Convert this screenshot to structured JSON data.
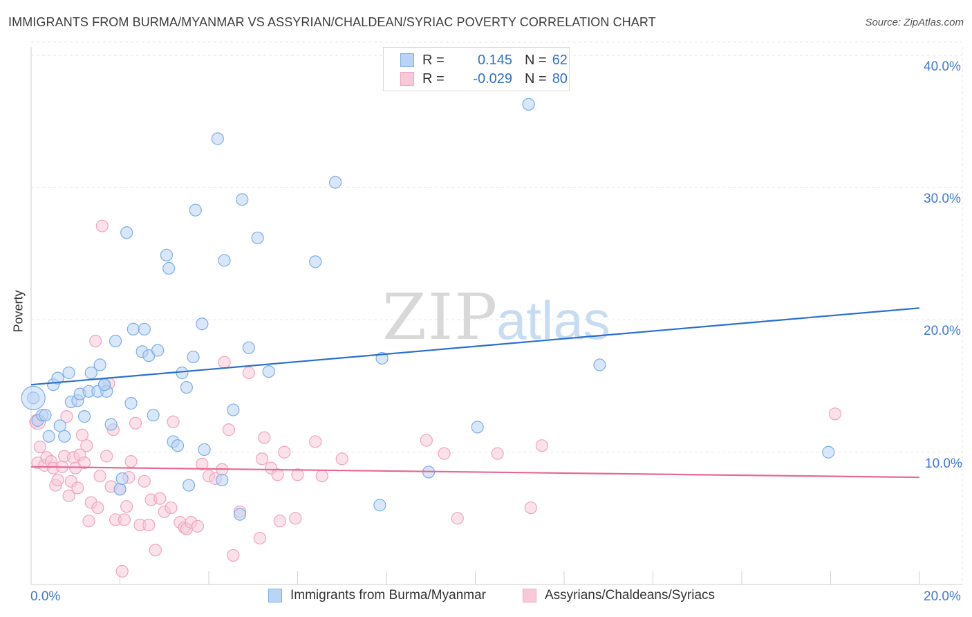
{
  "chart_data": {
    "type": "scatter",
    "title": "IMMIGRANTS FROM BURMA/MYANMAR VS ASSYRIAN/CHALDEAN/SYRIAC POVERTY CORRELATION CHART",
    "source": "Source: ZipAtlas.com",
    "xlabel": "",
    "ylabel": "Poverty",
    "xlim": [
      0,
      20
    ],
    "ylim": [
      0,
      40
    ],
    "x_tick_labels": [
      "0.0%",
      "20.0%"
    ],
    "y_tick_labels": [
      "10.0%",
      "20.0%",
      "30.0%",
      "40.0%"
    ],
    "watermark": {
      "zip": "ZIP",
      "atlas": "atlas"
    },
    "series": [
      {
        "name": "Immigrants from Burma/Myanmar",
        "color": "#7baee8",
        "fill": "#b9d4f5",
        "line_color": "#2a6fcf",
        "R": "0.145",
        "N": "62",
        "trend": [
          [
            0,
            15.1
          ],
          [
            20,
            20.9
          ]
        ],
        "points": [
          [
            0.05,
            14.1
          ],
          [
            0.15,
            12.4
          ],
          [
            0.25,
            12.8
          ],
          [
            0.32,
            12.8
          ],
          [
            0.4,
            11.2
          ],
          [
            0.5,
            15.1
          ],
          [
            0.6,
            15.6
          ],
          [
            0.65,
            12.0
          ],
          [
            0.75,
            11.2
          ],
          [
            0.85,
            16.0
          ],
          [
            0.9,
            13.8
          ],
          [
            1.05,
            13.9
          ],
          [
            1.1,
            14.4
          ],
          [
            1.2,
            12.7
          ],
          [
            1.3,
            14.6
          ],
          [
            1.35,
            16.0
          ],
          [
            1.5,
            14.6
          ],
          [
            1.55,
            16.6
          ],
          [
            1.65,
            15.1
          ],
          [
            1.7,
            14.6
          ],
          [
            1.8,
            12.1
          ],
          [
            1.9,
            18.4
          ],
          [
            2.0,
            7.2
          ],
          [
            2.05,
            8.0
          ],
          [
            2.15,
            26.6
          ],
          [
            2.25,
            13.7
          ],
          [
            2.3,
            19.3
          ],
          [
            2.5,
            17.6
          ],
          [
            2.55,
            19.3
          ],
          [
            2.65,
            17.3
          ],
          [
            2.75,
            12.8
          ],
          [
            2.85,
            17.7
          ],
          [
            3.05,
            24.9
          ],
          [
            3.1,
            23.9
          ],
          [
            3.2,
            10.8
          ],
          [
            3.3,
            10.5
          ],
          [
            3.4,
            16.0
          ],
          [
            3.5,
            14.9
          ],
          [
            3.55,
            7.5
          ],
          [
            3.65,
            17.2
          ],
          [
            3.7,
            28.3
          ],
          [
            3.85,
            19.7
          ],
          [
            3.9,
            10.2
          ],
          [
            4.2,
            33.7
          ],
          [
            4.3,
            7.9
          ],
          [
            4.35,
            24.5
          ],
          [
            4.55,
            13.2
          ],
          [
            4.7,
            5.3
          ],
          [
            4.75,
            29.1
          ],
          [
            4.9,
            17.9
          ],
          [
            5.1,
            26.2
          ],
          [
            5.35,
            16.1
          ],
          [
            6.4,
            24.4
          ],
          [
            6.85,
            30.4
          ],
          [
            7.85,
            6.0
          ],
          [
            7.9,
            17.1
          ],
          [
            8.95,
            8.5
          ],
          [
            10.05,
            11.9
          ],
          [
            11.2,
            36.3
          ],
          [
            12.8,
            16.6
          ],
          [
            17.95,
            10.0
          ],
          [
            1.65,
            15.1
          ]
        ]
      },
      {
        "name": "Assyrians/Chaldeans/Syriacs",
        "color": "#f0a3bd",
        "fill": "#f8cad8",
        "line_color": "#e8678f",
        "R": "-0.029",
        "N": "80",
        "trend": [
          [
            0,
            8.9
          ],
          [
            20,
            8.1
          ]
        ],
        "points": [
          [
            0.1,
            12.3
          ],
          [
            0.15,
            9.2
          ],
          [
            0.2,
            10.4
          ],
          [
            0.3,
            9.0
          ],
          [
            0.35,
            9.6
          ],
          [
            0.45,
            9.3
          ],
          [
            0.5,
            8.8
          ],
          [
            0.55,
            7.5
          ],
          [
            0.6,
            7.9
          ],
          [
            0.7,
            8.9
          ],
          [
            0.75,
            9.7
          ],
          [
            0.8,
            12.7
          ],
          [
            0.85,
            6.7
          ],
          [
            0.9,
            7.8
          ],
          [
            0.95,
            9.6
          ],
          [
            1.0,
            8.8
          ],
          [
            1.05,
            7.3
          ],
          [
            1.1,
            9.8
          ],
          [
            1.15,
            11.3
          ],
          [
            1.2,
            9.2
          ],
          [
            1.25,
            10.5
          ],
          [
            1.3,
            4.8
          ],
          [
            1.35,
            6.2
          ],
          [
            1.45,
            18.4
          ],
          [
            1.5,
            5.8
          ],
          [
            1.55,
            8.2
          ],
          [
            1.6,
            27.1
          ],
          [
            1.7,
            9.7
          ],
          [
            1.75,
            15.2
          ],
          [
            1.8,
            7.4
          ],
          [
            1.85,
            11.7
          ],
          [
            1.9,
            4.9
          ],
          [
            2.0,
            7.2
          ],
          [
            2.05,
            1.0
          ],
          [
            2.1,
            4.9
          ],
          [
            2.15,
            5.9
          ],
          [
            2.2,
            8.1
          ],
          [
            2.25,
            9.3
          ],
          [
            2.35,
            12.2
          ],
          [
            2.45,
            4.5
          ],
          [
            2.55,
            7.8
          ],
          [
            2.65,
            4.5
          ],
          [
            2.7,
            6.4
          ],
          [
            2.8,
            2.6
          ],
          [
            2.9,
            6.5
          ],
          [
            3.0,
            5.5
          ],
          [
            3.15,
            5.8
          ],
          [
            3.2,
            12.3
          ],
          [
            3.35,
            4.7
          ],
          [
            3.45,
            4.3
          ],
          [
            3.5,
            4.2
          ],
          [
            3.6,
            4.7
          ],
          [
            3.75,
            4.4
          ],
          [
            3.85,
            9.1
          ],
          [
            4.0,
            8.2
          ],
          [
            4.15,
            8.0
          ],
          [
            4.3,
            8.7
          ],
          [
            4.35,
            16.8
          ],
          [
            4.45,
            11.7
          ],
          [
            4.55,
            2.2
          ],
          [
            4.7,
            5.5
          ],
          [
            4.9,
            16.0
          ],
          [
            5.15,
            3.5
          ],
          [
            5.2,
            9.5
          ],
          [
            5.25,
            11.1
          ],
          [
            5.4,
            8.8
          ],
          [
            5.55,
            8.3
          ],
          [
            5.6,
            4.8
          ],
          [
            5.7,
            10.0
          ],
          [
            5.95,
            5.0
          ],
          [
            6.0,
            8.3
          ],
          [
            6.4,
            10.8
          ],
          [
            6.55,
            8.2
          ],
          [
            7.0,
            9.5
          ],
          [
            8.9,
            10.9
          ],
          [
            9.3,
            9.9
          ],
          [
            9.6,
            5.0
          ],
          [
            10.5,
            9.9
          ],
          [
            11.25,
            5.8
          ],
          [
            11.5,
            10.5
          ],
          [
            18.1,
            12.9
          ]
        ]
      }
    ]
  }
}
